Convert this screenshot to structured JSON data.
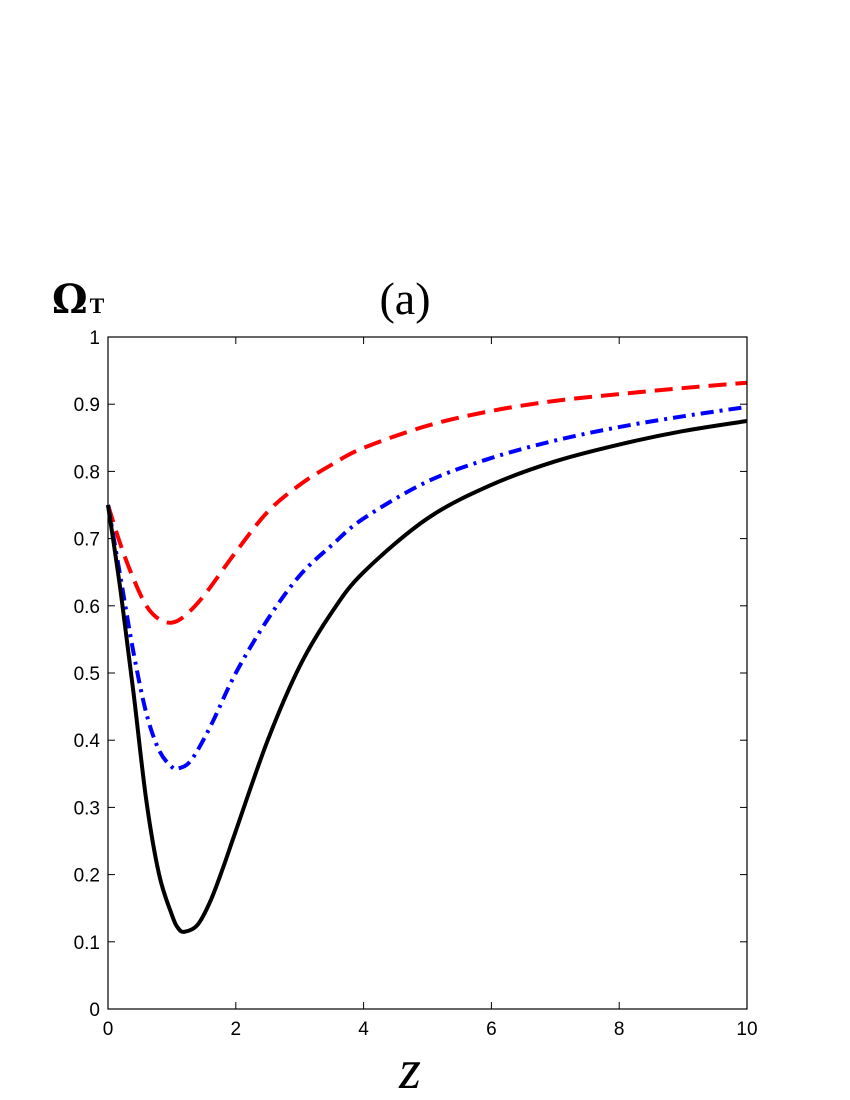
{
  "chart_data": {
    "type": "line",
    "title": "(a)",
    "ylabel": {
      "main": "Ω",
      "sub": "T"
    },
    "xlabel": "z",
    "xlim": [
      0,
      10
    ],
    "ylim": [
      0,
      1
    ],
    "xticks": [
      0,
      2,
      4,
      6,
      8,
      10
    ],
    "yticks": [
      0,
      0.1,
      0.2,
      0.3,
      0.4,
      0.5,
      0.6,
      0.7,
      0.8,
      0.9,
      1
    ],
    "ytick_labels": [
      "0",
      "0.1",
      "0.2",
      "0.3",
      "0.4",
      "0.5",
      "0.6",
      "0.7",
      "0.8",
      "0.9",
      "1"
    ],
    "grid": false,
    "series": [
      {
        "style": "dashed",
        "color": "#ff0000",
        "x": [
          0,
          0.2,
          0.4,
          0.6,
          0.8,
          1.0,
          1.2,
          1.5,
          2.0,
          2.5,
          3.0,
          3.5,
          4.0,
          5.0,
          6.0,
          7.0,
          8.0,
          9.0,
          10.0
        ],
        "y": [
          0.75,
          0.69,
          0.64,
          0.6,
          0.58,
          0.575,
          0.585,
          0.615,
          0.68,
          0.74,
          0.78,
          0.81,
          0.835,
          0.868,
          0.89,
          0.905,
          0.915,
          0.924,
          0.932
        ]
      },
      {
        "style": "dash-dot",
        "color": "#0000ff",
        "x": [
          0,
          0.2,
          0.4,
          0.6,
          0.8,
          1.0,
          1.1,
          1.3,
          1.6,
          2.0,
          2.5,
          3.0,
          3.5,
          4.0,
          5.0,
          6.0,
          7.0,
          8.0,
          9.0,
          10.0
        ],
        "y": [
          0.75,
          0.64,
          0.53,
          0.44,
          0.385,
          0.36,
          0.358,
          0.37,
          0.42,
          0.5,
          0.58,
          0.645,
          0.69,
          0.73,
          0.785,
          0.82,
          0.846,
          0.866,
          0.882,
          0.896
        ]
      },
      {
        "style": "solid",
        "color": "#000000",
        "x": [
          0,
          0.2,
          0.4,
          0.6,
          0.8,
          1.0,
          1.1,
          1.2,
          1.4,
          1.6,
          1.8,
          2.0,
          2.5,
          3.0,
          3.5,
          4.0,
          5.0,
          6.0,
          7.0,
          8.0,
          9.0,
          10.0
        ],
        "y": [
          0.75,
          0.62,
          0.47,
          0.31,
          0.2,
          0.14,
          0.12,
          0.115,
          0.125,
          0.16,
          0.21,
          0.265,
          0.4,
          0.51,
          0.59,
          0.65,
          0.73,
          0.78,
          0.815,
          0.84,
          0.86,
          0.875
        ]
      }
    ]
  }
}
